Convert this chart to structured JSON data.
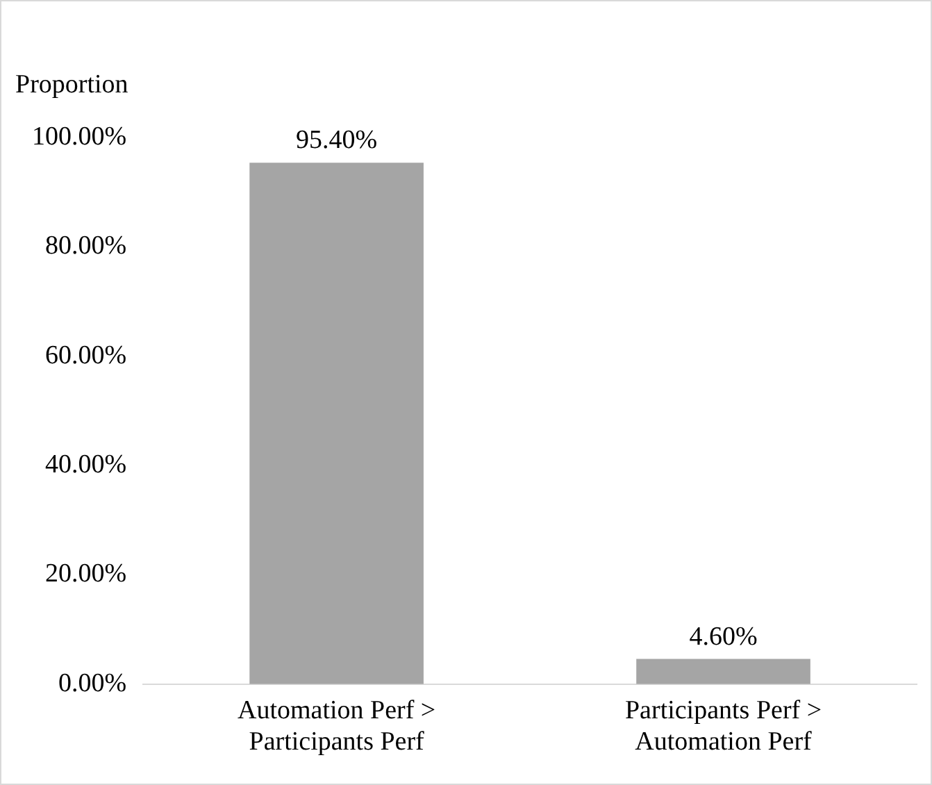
{
  "chart_data": {
    "type": "bar",
    "ylabel": "Proportion",
    "categories": [
      "Automation Perf > Participants Perf",
      "Participants Perf > Automation Perf"
    ],
    "values": [
      95.4,
      4.6
    ],
    "color": "#a5a5a5",
    "value_labels": [
      "95.40%",
      "4.60%"
    ],
    "ylim": [
      0,
      100
    ],
    "yticks": [
      {
        "value": 0,
        "label": "0.00%"
      },
      {
        "value": 20,
        "label": "20.00%"
      },
      {
        "value": 40,
        "label": "40.00%"
      },
      {
        "value": 60,
        "label": "60.00%"
      },
      {
        "value": 80,
        "label": "80.00%"
      },
      {
        "value": 100,
        "label": "100.00%"
      }
    ],
    "grid": false,
    "legend": false
  }
}
